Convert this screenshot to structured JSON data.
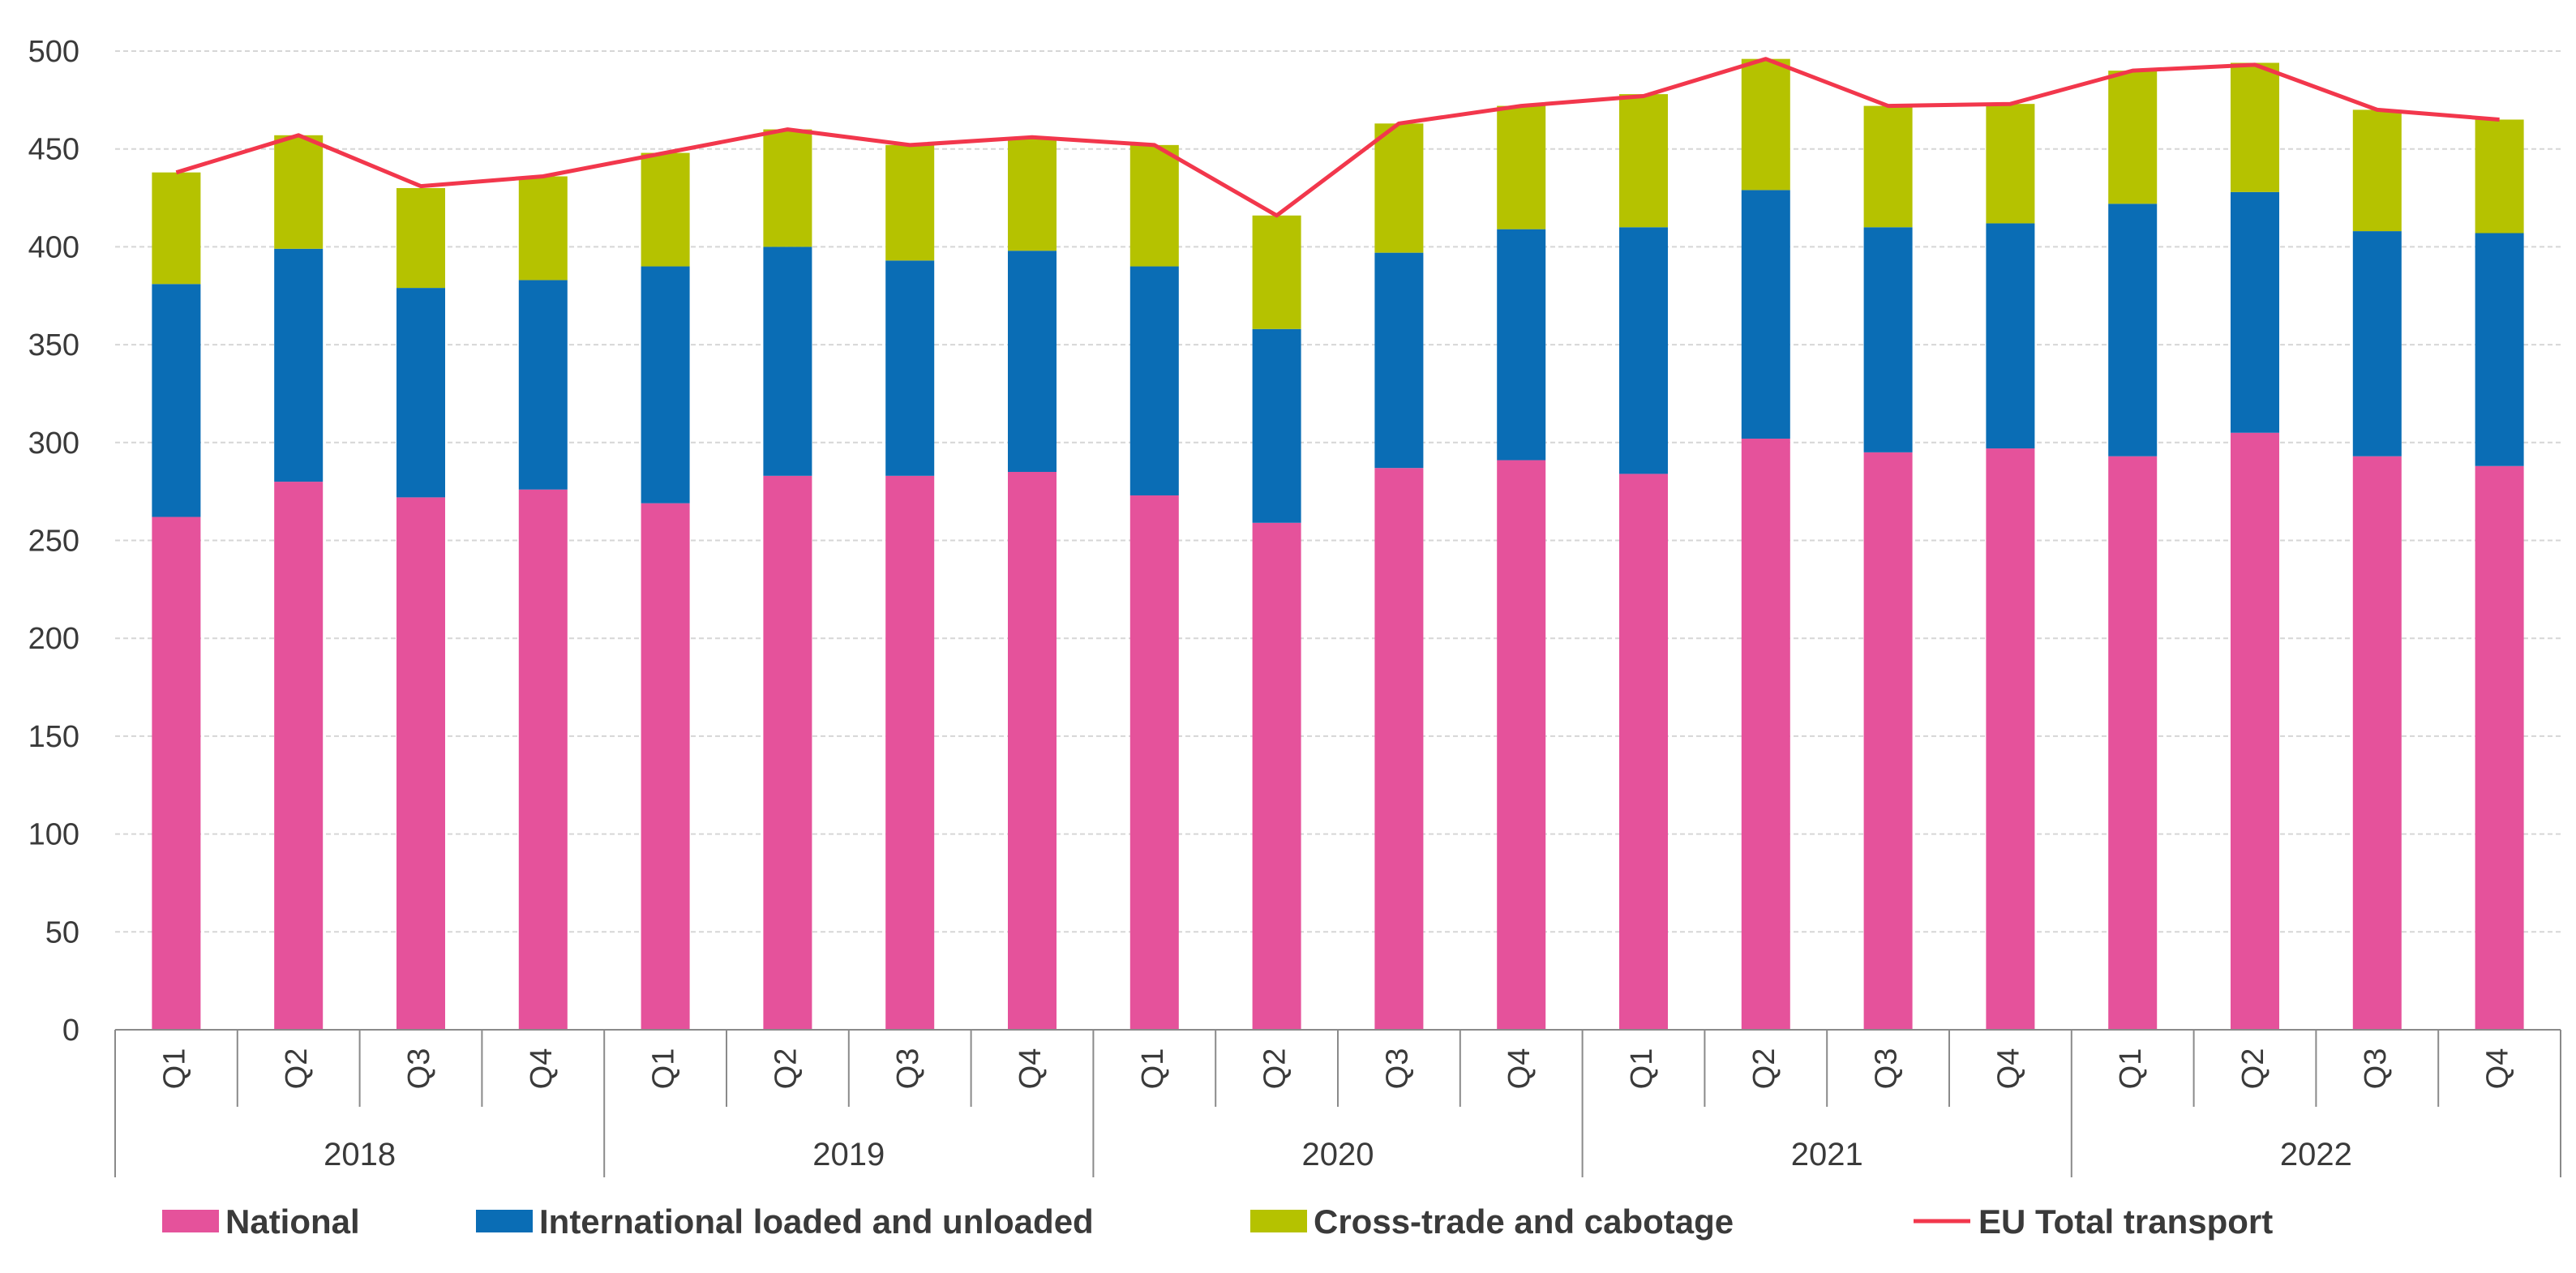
{
  "chart_data": {
    "type": "bar",
    "stacked": true,
    "title": "",
    "xlabel": "",
    "ylabel": "",
    "ylim": [
      0,
      500
    ],
    "yticks": [
      0,
      50,
      100,
      150,
      200,
      250,
      300,
      350,
      400,
      450,
      500
    ],
    "grid": true,
    "legend_position": "bottom",
    "groups": [
      {
        "label": "2018",
        "quarters": [
          "Q1",
          "Q2",
          "Q3",
          "Q4"
        ]
      },
      {
        "label": "2019",
        "quarters": [
          "Q1",
          "Q2",
          "Q3",
          "Q4"
        ]
      },
      {
        "label": "2020",
        "quarters": [
          "Q1",
          "Q2",
          "Q3",
          "Q4"
        ]
      },
      {
        "label": "2021",
        "quarters": [
          "Q1",
          "Q2",
          "Q3",
          "Q4"
        ]
      },
      {
        "label": "2022",
        "quarters": [
          "Q1",
          "Q2",
          "Q3",
          "Q4"
        ]
      }
    ],
    "series": [
      {
        "name": "National",
        "kind": "bar",
        "color": "#E5529B",
        "values": [
          262,
          280,
          272,
          276,
          269,
          283,
          283,
          285,
          273,
          259,
          287,
          291,
          284,
          302,
          295,
          297,
          293,
          305,
          293,
          288
        ]
      },
      {
        "name": "International loaded and unloaded",
        "kind": "bar",
        "color": "#0A6DB5",
        "values": [
          119,
          119,
          107,
          107,
          121,
          117,
          110,
          113,
          117,
          99,
          110,
          118,
          126,
          127,
          115,
          115,
          129,
          123,
          115,
          119
        ]
      },
      {
        "name": "Cross-trade and cabotage",
        "kind": "bar",
        "color": "#B5C200",
        "values": [
          57,
          58,
          51,
          53,
          58,
          60,
          59,
          58,
          62,
          58,
          66,
          63,
          68,
          67,
          62,
          61,
          68,
          66,
          62,
          58
        ]
      },
      {
        "name": "EU Total transport",
        "kind": "line",
        "color": "#F2374C",
        "values": [
          438,
          457,
          431,
          436,
          448,
          460,
          452,
          456,
          452,
          416,
          463,
          472,
          477,
          496,
          472,
          473,
          490,
          493,
          470,
          465
        ]
      }
    ]
  }
}
